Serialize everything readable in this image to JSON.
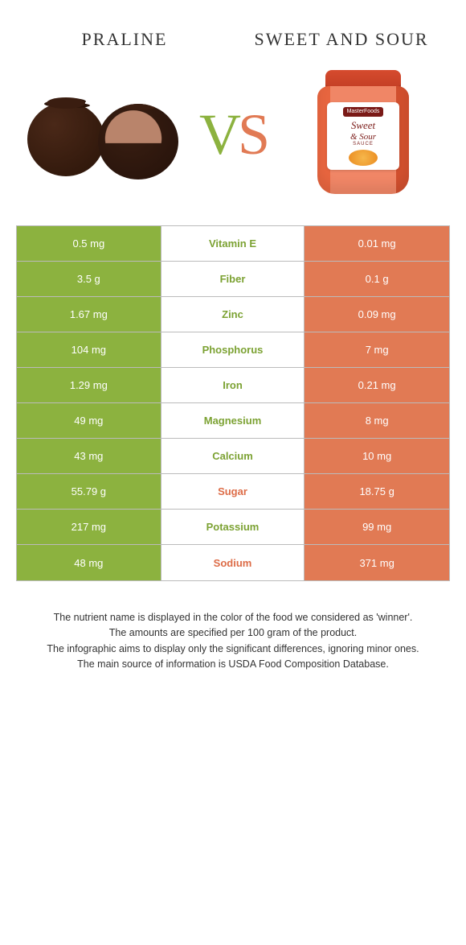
{
  "header": {
    "left_title": "Praline",
    "right_title": "Sweet and Sour",
    "vs_v": "V",
    "vs_s": "S"
  },
  "jar_label": {
    "brand": "MasterFoods",
    "line1": "Sweet",
    "line2": "& Sour",
    "sauce": "SAUCE"
  },
  "colors": {
    "left": "#8cb23f",
    "right": "#e17a54",
    "mid_left_text": "#7ca233",
    "mid_right_text": "#dd6c47"
  },
  "table": {
    "rows": [
      {
        "left": "0.5 mg",
        "mid": "Vitamin E",
        "right": "0.01 mg",
        "winner": "left"
      },
      {
        "left": "3.5 g",
        "mid": "Fiber",
        "right": "0.1 g",
        "winner": "left"
      },
      {
        "left": "1.67 mg",
        "mid": "Zinc",
        "right": "0.09 mg",
        "winner": "left"
      },
      {
        "left": "104 mg",
        "mid": "Phosphorus",
        "right": "7 mg",
        "winner": "left"
      },
      {
        "left": "1.29 mg",
        "mid": "Iron",
        "right": "0.21 mg",
        "winner": "left"
      },
      {
        "left": "49 mg",
        "mid": "Magnesium",
        "right": "8 mg",
        "winner": "left"
      },
      {
        "left": "43 mg",
        "mid": "Calcium",
        "right": "10 mg",
        "winner": "left"
      },
      {
        "left": "55.79 g",
        "mid": "Sugar",
        "right": "18.75 g",
        "winner": "right"
      },
      {
        "left": "217 mg",
        "mid": "Potassium",
        "right": "99 mg",
        "winner": "left"
      },
      {
        "left": "48 mg",
        "mid": "Sodium",
        "right": "371 mg",
        "winner": "right"
      }
    ]
  },
  "footnotes": [
    "The nutrient name is displayed in the color of the food we considered as 'winner'.",
    "The amounts are specified per 100 gram of the product.",
    "The infographic aims to display only the significant differences, ignoring minor ones.",
    "The main source of information is USDA Food Composition Database."
  ]
}
